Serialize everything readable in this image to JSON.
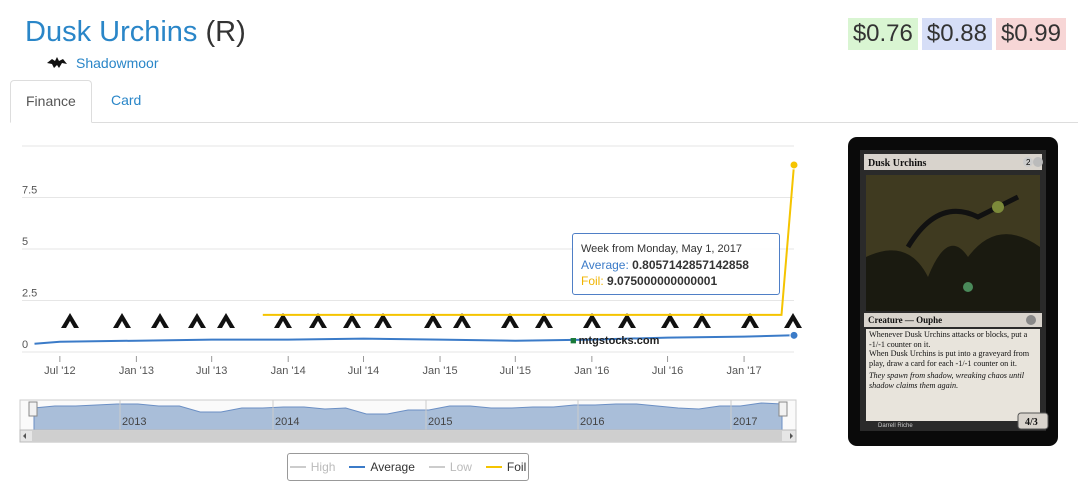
{
  "card": {
    "name": "Dusk Urchins",
    "rarity": "(R)",
    "set_name": "Shadowmoor",
    "set_icon": "shadowmoor-set-icon"
  },
  "prices": {
    "low": "$0.76",
    "average": "$0.88",
    "high": "$0.99",
    "low_color": "#d9f5d2",
    "average_color": "#d6def7",
    "high_color": "#f7d6d6"
  },
  "tabs": [
    {
      "label": "Finance",
      "active": true
    },
    {
      "label": "Card",
      "active": false
    }
  ],
  "tooltip": {
    "header": "Week from Monday, May 1, 2017",
    "average_label": "Average:",
    "average_value": "0.8057142857142858",
    "foil_label": "Foil:",
    "foil_value": "9.075000000000001"
  },
  "watermark": "mtgstocks.com",
  "legend": [
    {
      "label": "High",
      "color": "#cccccc",
      "visible": false
    },
    {
      "label": "Average",
      "color": "#3b7bc8",
      "visible": true
    },
    {
      "label": "Low",
      "color": "#cccccc",
      "visible": false
    },
    {
      "label": "Foil",
      "color": "#f5c400",
      "visible": true
    }
  ],
  "navigator_years": [
    "2013",
    "2014",
    "2015",
    "2016",
    "2017"
  ],
  "chart_data": {
    "type": "line",
    "ylim": [
      0,
      10
    ],
    "y_ticks": [
      "0",
      "2.5",
      "5",
      "7.5"
    ],
    "x_ticks": [
      "Jul '12",
      "Jan '13",
      "Jul '13",
      "Jan '14",
      "Jul '14",
      "Jan '15",
      "Jul '15",
      "Jan '16",
      "Jul '16",
      "Jan '17"
    ],
    "series": [
      {
        "name": "Average",
        "color": "#3b7bc8",
        "x": [
          "2012-05",
          "2012-07",
          "2013-01",
          "2013-07",
          "2014-01",
          "2014-07",
          "2015-01",
          "2015-07",
          "2016-01",
          "2016-07",
          "2017-01",
          "2017-05"
        ],
        "values": [
          0.4,
          0.5,
          0.55,
          0.6,
          0.6,
          0.65,
          0.6,
          0.55,
          0.6,
          0.7,
          0.75,
          0.81
        ]
      },
      {
        "name": "Foil",
        "color": "#f5c400",
        "x": [
          "2013-11",
          "2014-01",
          "2014-07",
          "2015-01",
          "2015-07",
          "2016-01",
          "2016-07",
          "2017-01",
          "2017-04",
          "2017-05"
        ],
        "values": [
          1.8,
          1.8,
          1.8,
          1.8,
          1.8,
          1.8,
          1.8,
          1.8,
          1.8,
          9.08
        ]
      }
    ]
  },
  "set_symbols": [
    "set-symbol-1",
    "set-symbol-2",
    "set-symbol-3",
    "m14-icon",
    "set-symbol-5",
    "set-symbol-6",
    "set-symbol-7",
    "m15-icon",
    "set-symbol-9",
    "set-symbol-10",
    "set-symbol-11",
    "set-symbol-12",
    "set-symbol-13",
    "set-symbol-14",
    "set-symbol-15",
    "set-symbol-16",
    "set-symbol-17",
    "set-symbol-18",
    "set-symbol-19"
  ],
  "card_image": {
    "name": "Dusk Urchins",
    "cost": "2",
    "type": "Creature — Ouphe",
    "rules_1": "Whenever Dusk Urchins attacks or blocks, put a -1/-1 counter on it.",
    "rules_2": "When Dusk Urchins is put into a graveyard from play, draw a card for each -1/-1 counter on it.",
    "flavor": "They spawn from shadow, wreaking chaos until shadow claims them again.",
    "pt": "4/3",
    "artist": "Darrell Riche"
  }
}
